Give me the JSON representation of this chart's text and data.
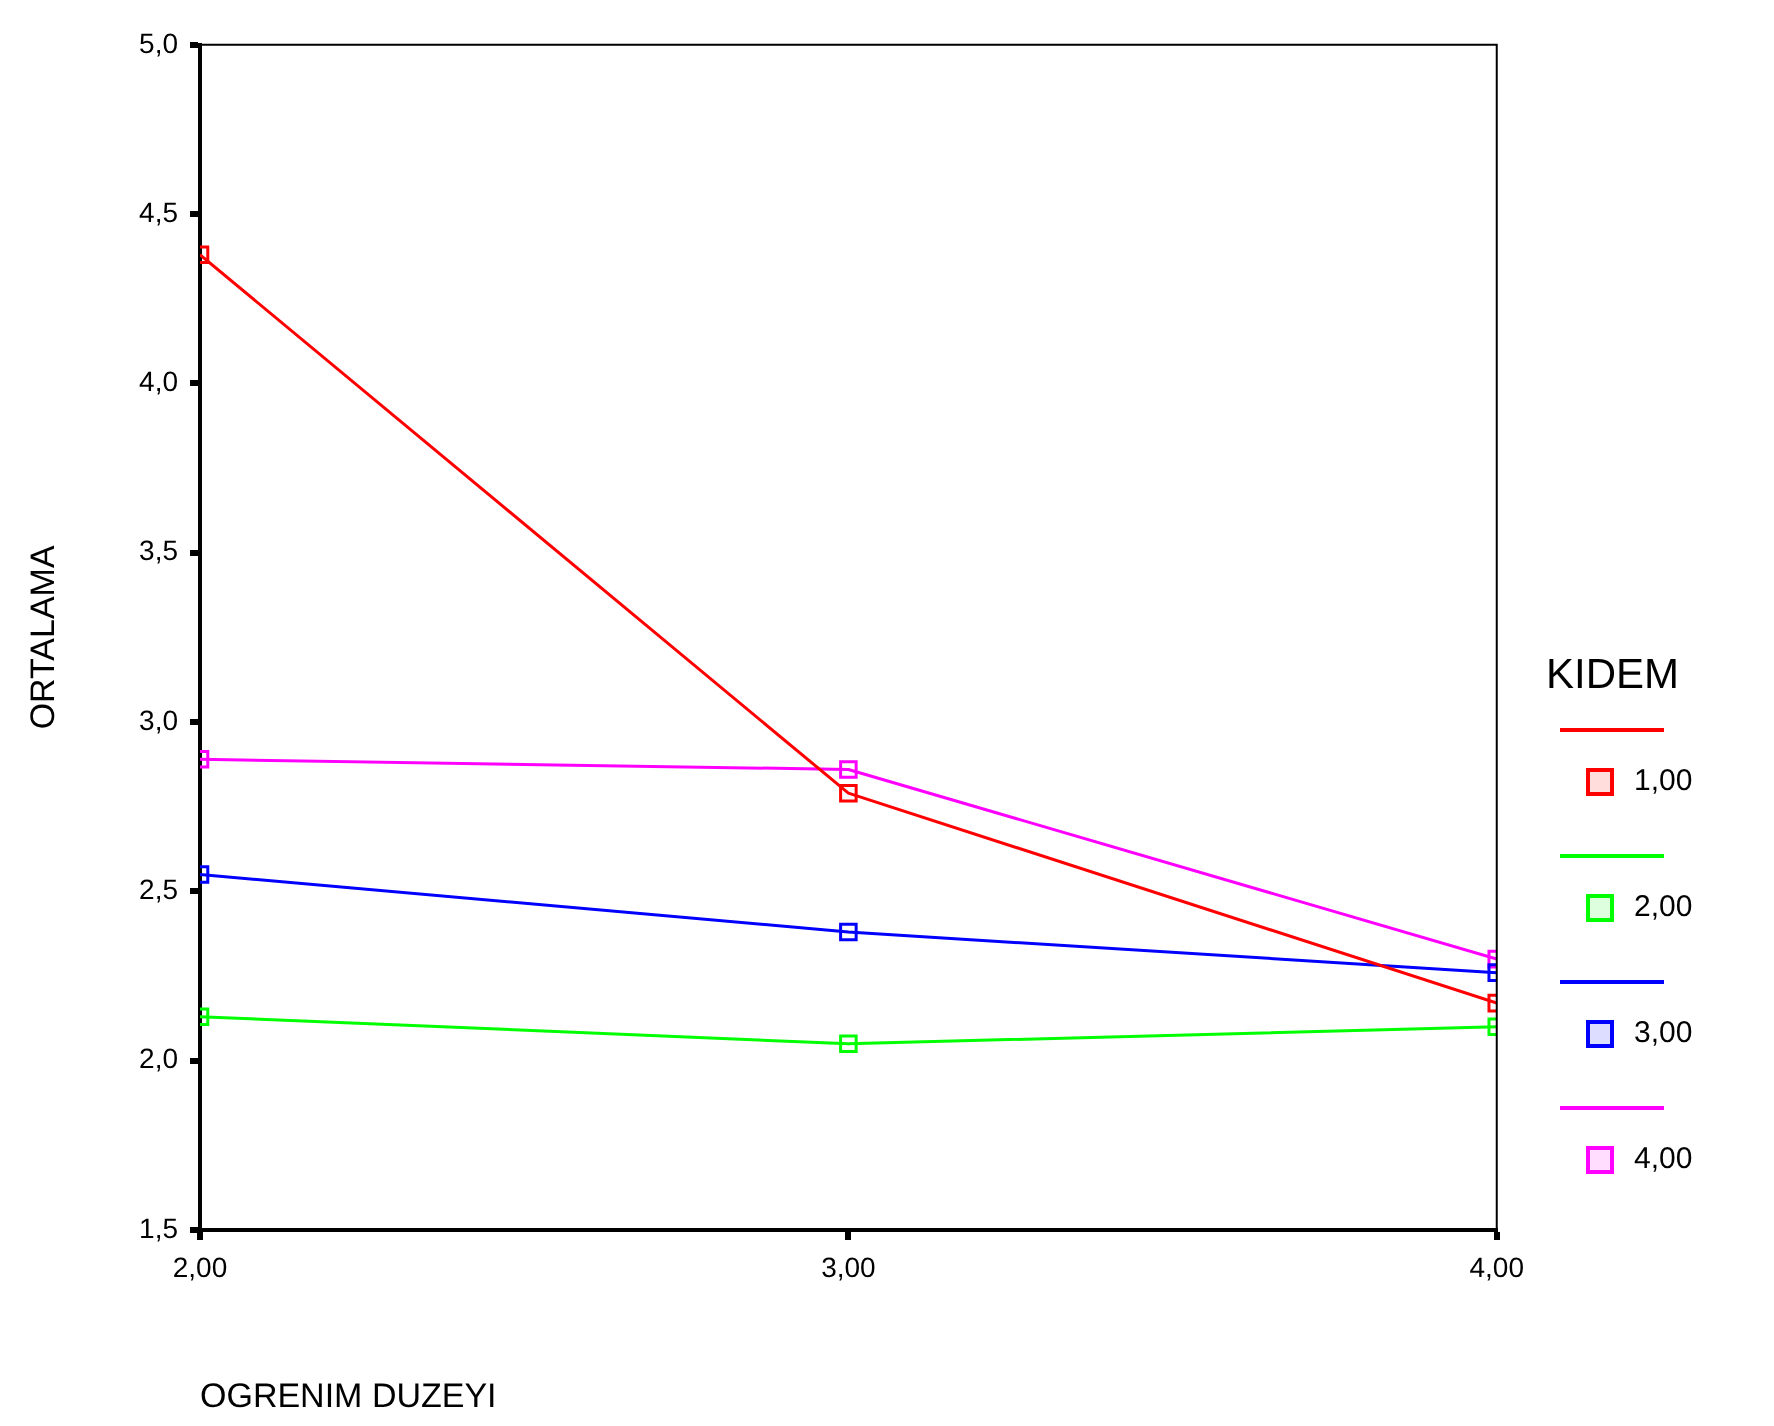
{
  "chart_data": {
    "type": "line",
    "xlabel": "OGRENIM DUZEYI",
    "ylabel": "ORTALAMA",
    "legend_title": "KIDEM",
    "legend": "right",
    "marker": "square",
    "line_style": "solid",
    "grid": false,
    "x": [
      2,
      3,
      4
    ],
    "xlim": [
      2,
      4
    ],
    "xticks": [
      {
        "value": 2,
        "label": "2,00"
      },
      {
        "value": 3,
        "label": "3,00"
      },
      {
        "value": 4,
        "label": "4,00"
      }
    ],
    "ylim": [
      1.5,
      5
    ],
    "yticks": [
      {
        "value": 1.5,
        "label": "1,5"
      },
      {
        "value": 2,
        "label": "2,0"
      },
      {
        "value": 2.5,
        "label": "2,5"
      },
      {
        "value": 3,
        "label": "3,0"
      },
      {
        "value": 3.5,
        "label": "3,5"
      },
      {
        "value": 4,
        "label": "4,0"
      },
      {
        "value": 4.5,
        "label": "4,5"
      },
      {
        "value": 5,
        "label": "5,0"
      }
    ],
    "series": [
      {
        "name": "1,00",
        "color": "#ff0000",
        "values": [
          4.38,
          2.79,
          2.17
        ]
      },
      {
        "name": "2,00",
        "color": "#00ff00",
        "values": [
          2.13,
          2.05,
          2.1
        ]
      },
      {
        "name": "3,00",
        "color": "#0000ff",
        "values": [
          2.55,
          2.38,
          2.26
        ]
      },
      {
        "name": "4,00",
        "color": "#ff00ff",
        "values": [
          2.89,
          2.86,
          2.3
        ]
      }
    ]
  }
}
